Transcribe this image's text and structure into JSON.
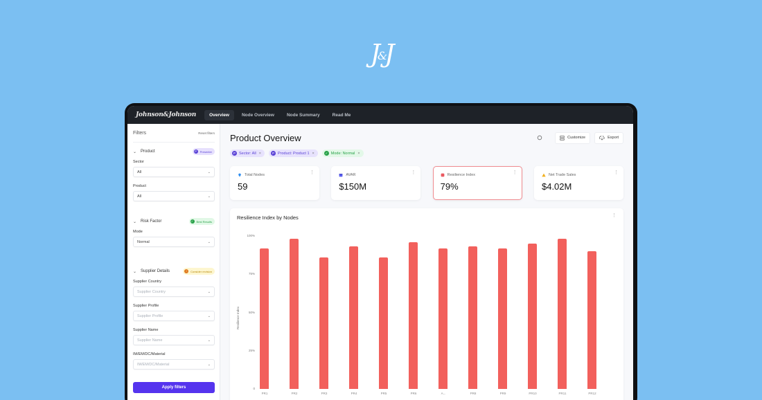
{
  "logo": {
    "left": "J",
    "amp": "&",
    "right": "J"
  },
  "topbar": {
    "brand": "Johnson&Johnson",
    "nav": [
      {
        "label": "Overview",
        "active": true
      },
      {
        "label": "Node Overview",
        "active": false
      },
      {
        "label": "Node Summary",
        "active": false
      },
      {
        "label": "Read Me",
        "active": false
      }
    ]
  },
  "sidebar": {
    "title": "Filters",
    "reset_label": "Reset filters",
    "sections": [
      {
        "title": "Product",
        "pill": {
          "label": "Presenter",
          "color": "purple",
          "icon": "P"
        },
        "fields": [
          {
            "label": "Sector",
            "value": "All",
            "placeholder": false
          },
          {
            "label": "Product",
            "value": "All",
            "placeholder": false
          }
        ]
      },
      {
        "title": "Risk Factor",
        "pill": {
          "label": "Best Results",
          "color": "green",
          "icon": "✓"
        },
        "fields": [
          {
            "label": "Mode",
            "value": "Normal",
            "placeholder": false
          }
        ]
      },
      {
        "title": "Supplier Details",
        "pill": {
          "label": "Consider revision",
          "color": "yellow",
          "icon": "!"
        },
        "fields": [
          {
            "label": "Supplier Country",
            "value": "Supplier Country",
            "placeholder": true
          },
          {
            "label": "Supplier Profile",
            "value": "Supplier Profile",
            "placeholder": true
          },
          {
            "label": "Supplier Name",
            "value": "Supplier Name",
            "placeholder": true
          },
          {
            "label": "IM/EM/DC/Material",
            "value": "IM/EM/DC/Material",
            "placeholder": true
          }
        ]
      }
    ],
    "apply_label": "Apply filters"
  },
  "main": {
    "title": "Product Overview",
    "customize_label": "Customize",
    "export_label": "Export",
    "chips": [
      {
        "label": "Sector: All",
        "color": "purple",
        "icon": "P"
      },
      {
        "label": "Product: Product 1",
        "color": "purple",
        "icon": "P"
      },
      {
        "label": "Mode: Normal",
        "color": "green",
        "icon": "✓"
      }
    ],
    "kpis": [
      {
        "label": "Total Nodes",
        "value": "59",
        "icon": "location-pin",
        "icon_color": "#2f8ef0",
        "selected": false
      },
      {
        "label": "AVAR",
        "value": "$150M",
        "icon": "calendar",
        "icon_color": "#5b5ff0",
        "selected": false
      },
      {
        "label": "Resilience Index",
        "value": "79%",
        "icon": "shield",
        "icon_color": "#ea5a61",
        "selected": true
      },
      {
        "label": "Net Trade Sales",
        "value": "$4.02M",
        "icon": "warning",
        "icon_color": "#f2b01e",
        "selected": false
      }
    ]
  },
  "chart_data": {
    "type": "bar",
    "title": "Resilience Index by Nodes",
    "xlabel": "",
    "ylabel": "Resilience Index",
    "ylim": [
      0,
      100
    ],
    "yticks": [
      "0",
      "25%",
      "50%",
      "75%",
      "100%"
    ],
    "categories": [
      "PR1",
      "PR2",
      "PR3",
      "PR4",
      "PR5",
      "PR6",
      "A...",
      "PR8",
      "PR9",
      "PR10",
      "PR11",
      "PR12"
    ],
    "values": [
      92,
      98,
      86,
      93,
      86,
      96,
      92,
      93,
      92,
      95,
      98,
      90
    ],
    "bar_color": "#f2605c",
    "grid": false,
    "legend": "none"
  }
}
